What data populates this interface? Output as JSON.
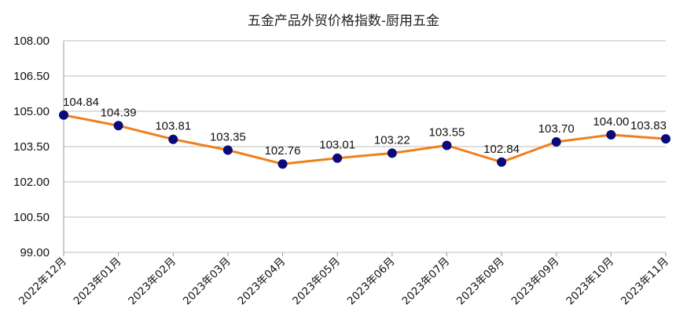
{
  "chart_data": {
    "type": "line",
    "title": "五金产品外贸价格指数-厨用五金",
    "xlabel": "",
    "ylabel": "",
    "categories": [
      "2022年12月",
      "2023年01月",
      "2023年02月",
      "2023年03月",
      "2023年04月",
      "2023年05月",
      "2023年06月",
      "2023年07月",
      "2023年08月",
      "2023年09月",
      "2023年10月",
      "2023年11月"
    ],
    "series": [
      {
        "values": [
          104.84,
          104.39,
          103.81,
          103.35,
          102.76,
          103.01,
          103.22,
          103.55,
          102.84,
          103.7,
          104.0,
          103.83
        ],
        "labels": [
          "104.84",
          "104.39",
          "103.81",
          "103.35",
          "102.76",
          "103.01",
          "103.22",
          "103.55",
          "102.84",
          "103.70",
          "104.00",
          "103.83"
        ],
        "line_color": "#F07F1B",
        "marker_color": "#0A0A7A"
      }
    ],
    "ylim": [
      99.0,
      108.0
    ],
    "yticks": [
      "108.00",
      "106.50",
      "105.00",
      "103.50",
      "102.00",
      "100.50",
      "99.00"
    ],
    "ytick_values": [
      108.0,
      106.5,
      105.0,
      103.5,
      102.0,
      100.5,
      99.0
    ],
    "grid": true,
    "legend": "none"
  }
}
